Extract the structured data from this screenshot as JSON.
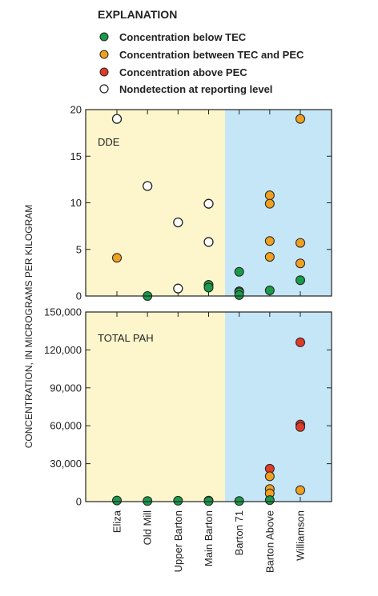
{
  "legend": {
    "title": "EXPLANATION",
    "items": [
      {
        "key": "below",
        "label": "Concentration below TEC",
        "color": "#1a9a4a"
      },
      {
        "key": "between",
        "label": "Concentration between TEC and PEC",
        "color": "#f0a020"
      },
      {
        "key": "above",
        "label": "Concentration above PEC",
        "color": "#e03a2a"
      },
      {
        "key": "nd",
        "label": "Nondetection at reporting level",
        "color": "#ffffff"
      }
    ]
  },
  "colors": {
    "panel_left": "#fdf6cc",
    "panel_right": "#c5e6f6",
    "below": "#1a9a4a",
    "between": "#f0a020",
    "above": "#e03a2a",
    "nd": "#ffffff"
  },
  "chart_data": {
    "type": "scatter",
    "ylabel": "CONCENTRATION, IN MICROGRAMS PER KILOGRAM",
    "categories": [
      "Eliza",
      "Old Mill",
      "Upper Barton",
      "Main Barton",
      "Barton 71",
      "Barton Above",
      "Williamson"
    ],
    "panels": [
      {
        "title": "DDE",
        "ylim": [
          0,
          20
        ],
        "yticks": [
          0,
          5,
          10,
          15,
          20
        ],
        "ytick_labels": [
          "0",
          "5",
          "10",
          "15",
          "20"
        ],
        "points": [
          {
            "site": "Eliza",
            "value": 19,
            "status": "nd"
          },
          {
            "site": "Eliza",
            "value": 4.1,
            "status": "between"
          },
          {
            "site": "Old Mill",
            "value": 11.8,
            "status": "nd"
          },
          {
            "site": "Old Mill",
            "value": 0,
            "status": "below"
          },
          {
            "site": "Upper Barton",
            "value": 7.9,
            "status": "nd"
          },
          {
            "site": "Upper Barton",
            "value": 0.8,
            "status": "nd"
          },
          {
            "site": "Main Barton",
            "value": 9.9,
            "status": "nd"
          },
          {
            "site": "Main Barton",
            "value": 5.8,
            "status": "nd"
          },
          {
            "site": "Main Barton",
            "value": 1.2,
            "status": "below"
          },
          {
            "site": "Main Barton",
            "value": 0.9,
            "status": "below"
          },
          {
            "site": "Barton 71",
            "value": 2.6,
            "status": "below"
          },
          {
            "site": "Barton 71",
            "value": 0.5,
            "status": "below"
          },
          {
            "site": "Barton 71",
            "value": 0.4,
            "status": "below"
          },
          {
            "site": "Barton 71",
            "value": 0.1,
            "status": "below"
          },
          {
            "site": "Barton Above",
            "value": 10.8,
            "status": "between"
          },
          {
            "site": "Barton Above",
            "value": 9.9,
            "status": "between"
          },
          {
            "site": "Barton Above",
            "value": 5.9,
            "status": "between"
          },
          {
            "site": "Barton Above",
            "value": 4.2,
            "status": "between"
          },
          {
            "site": "Barton Above",
            "value": 0.6,
            "status": "below"
          },
          {
            "site": "Williamson",
            "value": 19,
            "status": "between"
          },
          {
            "site": "Williamson",
            "value": 5.7,
            "status": "between"
          },
          {
            "site": "Williamson",
            "value": 3.5,
            "status": "between"
          },
          {
            "site": "Williamson",
            "value": 1.7,
            "status": "below"
          }
        ]
      },
      {
        "title": "TOTAL PAH",
        "ylim": [
          0,
          150000
        ],
        "yticks": [
          0,
          30000,
          60000,
          90000,
          120000,
          150000
        ],
        "ytick_labels": [
          "0",
          "30,000",
          "60,000",
          "90,000",
          "120,000",
          "150,000"
        ],
        "points": [
          {
            "site": "Eliza",
            "value": 900,
            "status": "below"
          },
          {
            "site": "Old Mill",
            "value": 500,
            "status": "below"
          },
          {
            "site": "Upper Barton",
            "value": 700,
            "status": "below"
          },
          {
            "site": "Main Barton",
            "value": 800,
            "status": "below"
          },
          {
            "site": "Main Barton",
            "value": 400,
            "status": "below"
          },
          {
            "site": "Barton 71",
            "value": 500,
            "status": "below"
          },
          {
            "site": "Barton Above",
            "value": 26000,
            "status": "above"
          },
          {
            "site": "Barton Above",
            "value": 20000,
            "status": "between"
          },
          {
            "site": "Barton Above",
            "value": 10000,
            "status": "between"
          },
          {
            "site": "Barton Above",
            "value": 6500,
            "status": "between"
          },
          {
            "site": "Barton Above",
            "value": 1200,
            "status": "below"
          },
          {
            "site": "Williamson",
            "value": 126000,
            "status": "above"
          },
          {
            "site": "Williamson",
            "value": 61000,
            "status": "above"
          },
          {
            "site": "Williamson",
            "value": 59000,
            "status": "above"
          },
          {
            "site": "Williamson",
            "value": 9000,
            "status": "between"
          }
        ]
      }
    ]
  }
}
